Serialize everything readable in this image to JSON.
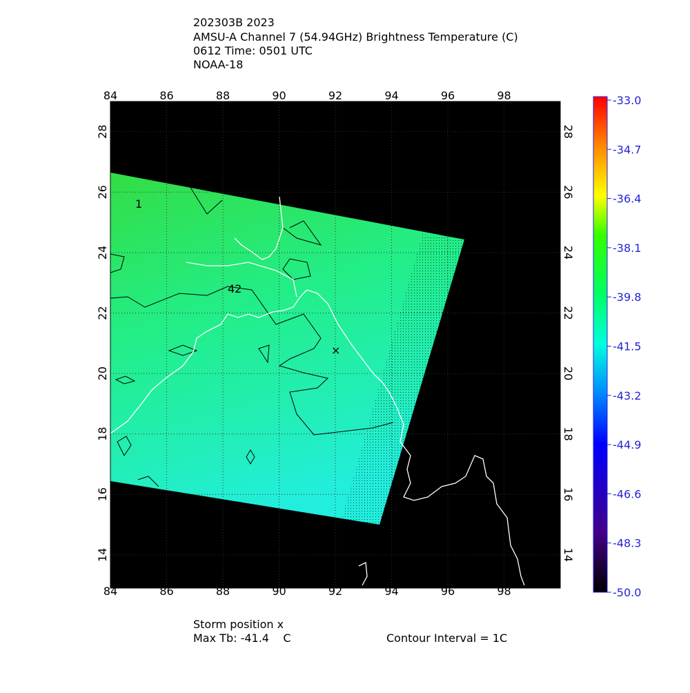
{
  "header": {
    "lines": [
      "202303B 2023",
      "AMSU-A Channel 7 (54.94GHz) Brightness Temperature (C)",
      "0612 Time: 0501 UTC",
      "NOAA-18"
    ]
  },
  "map": {
    "lon_range": [
      84,
      100
    ],
    "lat_range": [
      12.9,
      29.0
    ],
    "lon_ticks": [
      84,
      86,
      88,
      90,
      92,
      94,
      96,
      98
    ],
    "lat_ticks": [
      14,
      16,
      18,
      20,
      22,
      24,
      26,
      28
    ],
    "contour_labels": [
      "1",
      "42"
    ]
  },
  "colorbar": {
    "range": [
      -50,
      -33
    ],
    "ticks": [
      {
        "value": -33,
        "label": "-33.0"
      },
      -34.7,
      -36.4,
      -38.1,
      -39.8,
      -41.5,
      -43.2,
      -44.9,
      -46.6,
      -48.3,
      {
        "value": -50,
        "label": "-50.0"
      }
    ]
  },
  "footer": {
    "storm": "Storm position x",
    "max_tb": "Max Tb: -41.4    C",
    "contour_interval": "Contour Interval = 1C"
  }
}
